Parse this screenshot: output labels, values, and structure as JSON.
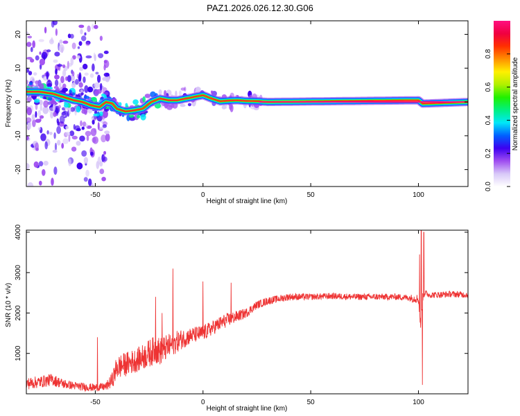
{
  "title": "PAZ1.2026.026.12.30.G06",
  "chart_data": [
    {
      "type": "heatmap",
      "panel": "spectrogram",
      "xlabel": "Height of straight line (km)",
      "ylabel": "Frequency (Hz)",
      "xlim": [
        -82,
        123
      ],
      "ylim": [
        -25,
        24
      ],
      "xticks": [
        -50,
        0,
        50,
        100
      ],
      "xtick_labels": [
        "-50",
        "0",
        "50",
        "100"
      ],
      "yticks": [
        -20,
        -10,
        0,
        10,
        20
      ],
      "ytick_labels": [
        "-20",
        "-10",
        "0",
        "10",
        "20"
      ],
      "colorbar": {
        "label": "Normalized spectral amplitude",
        "range": [
          0,
          1
        ],
        "ticks": [
          0,
          0.2,
          0.4,
          0.6,
          0.8
        ],
        "tick_labels": [
          "0.0",
          "0.2",
          "0.4",
          "0.6",
          "0.8"
        ],
        "colors": [
          "#ffffff",
          "#d8c8f8",
          "#9f4df0",
          "#3d00f0",
          "#0060ff",
          "#00e8f8",
          "#00f080",
          "#20f000",
          "#b0f000",
          "#fff000",
          "#ff9000",
          "#ff3000",
          "#f00040",
          "#ff1080"
        ]
      },
      "ridge": {
        "x": [
          -82,
          -76,
          -70,
          -65,
          -60,
          -56,
          -52,
          -48,
          -45,
          -42,
          -40,
          -36,
          -32,
          -28,
          -24,
          -20,
          -16,
          -12,
          -8,
          -4,
          0,
          4,
          8,
          12,
          16,
          20,
          26,
          30,
          100,
          102,
          123
        ],
        "y": [
          3,
          3,
          2.5,
          1.5,
          0.5,
          0,
          -1,
          -1.5,
          0,
          -0.5,
          -2,
          -2.8,
          -2.5,
          -2,
          0,
          1,
          0.5,
          0.5,
          1,
          1.5,
          2,
          1,
          0.2,
          0.4,
          0.5,
          0.3,
          0.2,
          0,
          0.5,
          -0.5,
          0
        ]
      },
      "steady_tone": {
        "x_from": 26,
        "x_to": 123,
        "frequency_hz": 0
      },
      "noise_band_km": [
        [
          -82,
          -44
        ],
        [
          -20,
          28
        ]
      ]
    },
    {
      "type": "line",
      "panel": "snr",
      "xlabel": "Height of straight line (km)",
      "ylabel": "SNR (10 * v/v)",
      "xlim": [
        -82,
        123
      ],
      "ylim": [
        0,
        4050
      ],
      "xticks": [
        -50,
        0,
        50,
        100
      ],
      "xtick_labels": [
        "-50",
        "0",
        "50",
        "100"
      ],
      "yticks": [
        1000,
        2000,
        3000,
        4000
      ],
      "ytick_labels": [
        "1000",
        "2000",
        "3000",
        "4000"
      ],
      "series": [
        {
          "name": "SNR",
          "color": "#ee3333",
          "x": [
            -82,
            -75,
            -70,
            -65,
            -60,
            -55,
            -50,
            -45,
            -42,
            -40,
            -35,
            -30,
            -25,
            -22,
            -20,
            -15,
            -10,
            -5,
            0,
            5,
            10,
            15,
            20,
            25,
            30,
            35,
            40,
            50,
            60,
            70,
            80,
            90,
            95,
            100,
            101,
            102,
            103,
            105,
            110,
            115,
            123
          ],
          "y": [
            250,
            300,
            350,
            250,
            200,
            170,
            150,
            180,
            350,
            650,
            750,
            850,
            1000,
            1100,
            1050,
            1200,
            1350,
            1450,
            1500,
            1650,
            1800,
            1900,
            2000,
            2200,
            2300,
            2350,
            2400,
            2400,
            2420,
            2400,
            2400,
            2400,
            2380,
            2350,
            1700,
            2400,
            2500,
            2450,
            2450,
            2470,
            2450
          ],
          "noise": [
            150,
            150,
            150,
            120,
            100,
            100,
            100,
            100,
            200,
            300,
            300,
            300,
            350,
            350,
            350,
            300,
            250,
            200,
            200,
            180,
            180,
            150,
            120,
            100,
            100,
            90,
            90,
            80,
            80,
            80,
            80,
            80,
            80,
            120,
            120,
            120,
            80,
            80,
            80,
            80,
            80
          ]
        }
      ],
      "spikes": [
        {
          "x": -49,
          "y": 1400
        },
        {
          "x": -22,
          "y": 2400
        },
        {
          "x": -19,
          "y": 2000
        },
        {
          "x": -14,
          "y": 3100
        },
        {
          "x": 0,
          "y": 2780
        },
        {
          "x": 13,
          "y": 2750
        },
        {
          "x": 100.5,
          "y": 3450
        },
        {
          "x": 101.3,
          "y": 4050
        },
        {
          "x": 101.8,
          "y": 220
        },
        {
          "x": 102.5,
          "y": 4000
        }
      ]
    }
  ]
}
